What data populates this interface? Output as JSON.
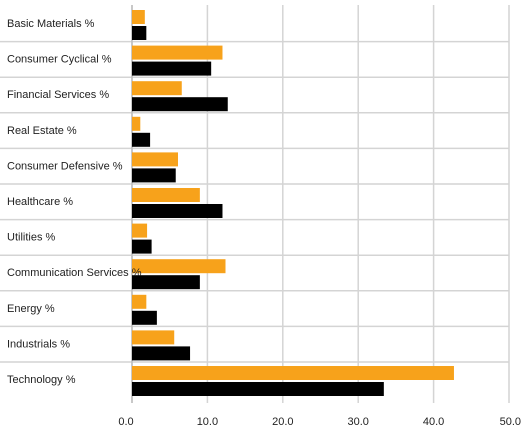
{
  "chart_data": {
    "type": "bar",
    "orientation": "horizontal",
    "categories": [
      "Basic Materials %",
      "Consumer Cyclical %",
      "Financial Services %",
      "Real Estate %",
      "Consumer Defensive %",
      "Healthcare %",
      "Utilities %",
      "Communication Services %",
      "Energy %",
      "Industrials %",
      "Technology %"
    ],
    "series": [
      {
        "color": "#f7a21b",
        "values": [
          1.7,
          12.0,
          6.6,
          1.1,
          6.1,
          9.0,
          2.0,
          12.4,
          1.9,
          5.6,
          42.7
        ]
      },
      {
        "color": "#000000",
        "values": [
          1.9,
          10.5,
          12.7,
          2.4,
          5.8,
          12.0,
          2.6,
          9.0,
          3.3,
          7.7,
          33.4
        ]
      }
    ],
    "xlim": [
      0,
      50
    ],
    "xticks": [
      "0.0",
      "10.0",
      "20.0",
      "30.0",
      "40.0",
      "50.0"
    ],
    "grid": true,
    "legend": "none",
    "colors": {
      "grid": "#d4d4d4",
      "text": "#222222"
    }
  }
}
